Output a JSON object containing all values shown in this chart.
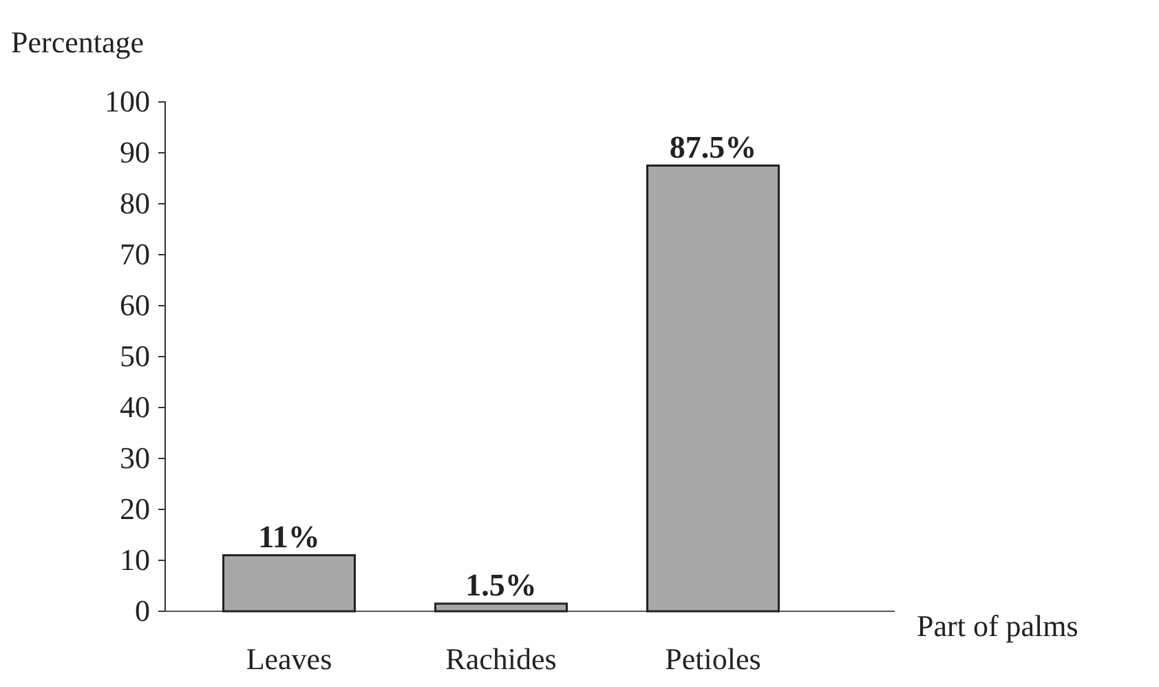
{
  "chart_data": {
    "type": "bar",
    "ylabel": "Percentage",
    "xlabel": "Part of palms",
    "categories": [
      "Leaves",
      "Rachides",
      "Petioles"
    ],
    "values": [
      11,
      1.5,
      87.5
    ],
    "value_labels": [
      "11%",
      "1.5%",
      "87.5%"
    ],
    "color": "#a8a8a8",
    "ylim": [
      0,
      100
    ],
    "yticks": [
      0,
      10,
      20,
      30,
      40,
      50,
      60,
      70,
      80,
      90,
      100
    ],
    "grid": false
  }
}
